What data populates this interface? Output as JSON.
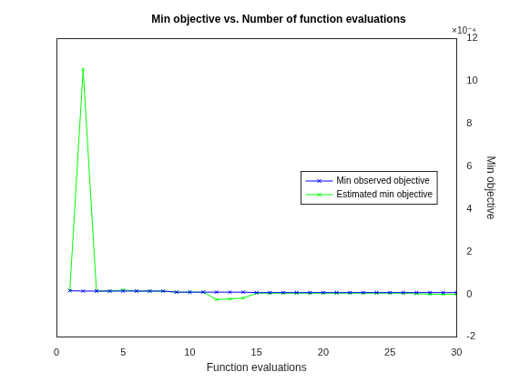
{
  "chart_data": {
    "type": "line",
    "title": "Min objective vs. Number of function evaluations",
    "x_label": "Function evaluations",
    "y_label": "Min objective",
    "annotations": [
      "×10⁻⁴"
    ],
    "x": [
      1,
      2,
      3,
      4,
      5,
      6,
      7,
      8,
      9,
      10,
      11,
      12,
      13,
      14,
      15,
      16,
      17,
      18,
      19,
      20,
      21,
      22,
      23,
      24,
      25,
      26,
      27,
      28,
      29,
      30
    ],
    "series": [
      {
        "name": "Min observed objective",
        "color": "#0000ff",
        "marker": "x",
        "line_style": "solid",
        "values": [
          0.17,
          0.15,
          0.15,
          0.15,
          0.15,
          0.15,
          0.15,
          0.15,
          0.1,
          0.1,
          0.1,
          0.1,
          0.1,
          0.1,
          0.08,
          0.08,
          0.08,
          0.08,
          0.08,
          0.08,
          0.08,
          0.08,
          0.08,
          0.08,
          0.08,
          0.08,
          0.08,
          0.08,
          0.08,
          0.08
        ]
      },
      {
        "name": "Estimated min objective",
        "color": "#00ff00",
        "marker": "x",
        "line_style": "solid",
        "values": [
          0.17,
          10.55,
          0.15,
          0.15,
          0.2,
          0.15,
          0.15,
          0.15,
          0.1,
          0.1,
          0.1,
          -0.25,
          -0.22,
          -0.18,
          0.05,
          0.05,
          0.05,
          0.05,
          0.05,
          0.05,
          0.05,
          0.05,
          0.05,
          0.05,
          0.05,
          0.05,
          0.03,
          0.0,
          0.0,
          0.0
        ]
      }
    ],
    "xlim": [
      0,
      30
    ],
    "xticks": [
      0,
      5,
      10,
      15,
      20,
      25,
      30
    ],
    "ylim": [
      -2,
      12
    ],
    "yticks": [
      -2,
      0,
      2,
      4,
      6,
      8,
      10,
      12
    ],
    "grid": false,
    "legend": "east"
  }
}
